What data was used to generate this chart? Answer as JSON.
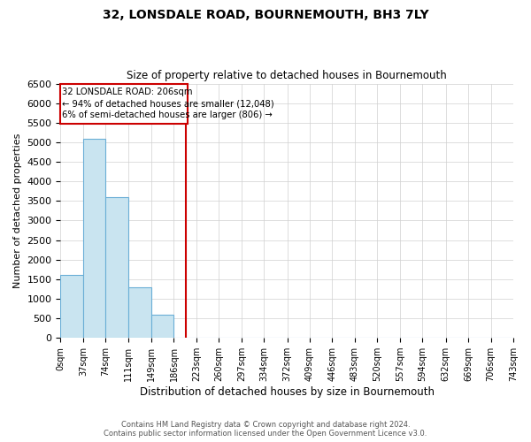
{
  "title": "32, LONSDALE ROAD, BOURNEMOUTH, BH3 7LY",
  "subtitle": "Size of property relative to detached houses in Bournemouth",
  "xlabel": "Distribution of detached houses by size in Bournemouth",
  "ylabel": "Number of detached properties",
  "annotation_line1": "32 LONSDALE ROAD: 206sqm",
  "annotation_line2": "← 94% of detached houses are smaller (12,048)",
  "annotation_line3": "6% of semi-detached houses are larger (806) →",
  "footer_line1": "Contains HM Land Registry data © Crown copyright and database right 2024.",
  "footer_line2": "Contains public sector information licensed under the Open Government Licence v3.0.",
  "property_size_sqm": 206,
  "bin_edges": [
    0,
    37,
    74,
    111,
    149,
    186,
    223,
    260,
    297,
    334,
    372,
    409,
    446,
    483,
    520,
    557,
    594,
    632,
    669,
    706,
    743
  ],
  "bin_labels": [
    "0sqm",
    "37sqm",
    "74sqm",
    "111sqm",
    "149sqm",
    "186sqm",
    "223sqm",
    "260sqm",
    "297sqm",
    "334sqm",
    "372sqm",
    "409sqm",
    "446sqm",
    "483sqm",
    "520sqm",
    "557sqm",
    "594sqm",
    "632sqm",
    "669sqm",
    "706sqm",
    "743sqm"
  ],
  "bar_heights": [
    1600,
    5100,
    3600,
    1300,
    600,
    0,
    0,
    0,
    0,
    0,
    0,
    0,
    0,
    0,
    0,
    0,
    0,
    0,
    0,
    0
  ],
  "bar_color": "#c9e4f0",
  "bar_edgecolor": "#6aaed6",
  "vline_x": 206,
  "vline_color": "#cc0000",
  "ylim": [
    0,
    6500
  ],
  "yticks": [
    0,
    500,
    1000,
    1500,
    2000,
    2500,
    3000,
    3500,
    4000,
    4500,
    5000,
    5500,
    6000,
    6500
  ],
  "annotation_box_color": "#cc0000",
  "background_color": "#ffffff",
  "grid_color": "#d0d0d0"
}
